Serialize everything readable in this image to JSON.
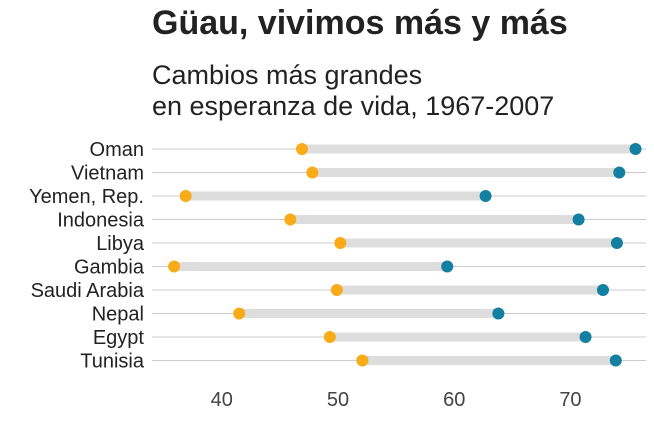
{
  "chart_data": {
    "type": "dumbbell",
    "title": "Güau, vivimos más y más",
    "subtitle": [
      "Cambios más grandes",
      "en esperanza de vida, 1967-2007"
    ],
    "xlabel": "",
    "ylabel": "",
    "xlim": [
      34,
      76.5
    ],
    "x_ticks": [
      40,
      50,
      60,
      70
    ],
    "grid": "horizontal",
    "colors": {
      "start": "#FAAB18",
      "end": "#1380A1",
      "bar": "#dddddd",
      "grid": "#cbcbcb"
    },
    "series": [
      {
        "year": 1967,
        "color": "#FAAB18"
      },
      {
        "year": 2007,
        "color": "#1380A1"
      }
    ],
    "categories": [
      "Oman",
      "Vietnam",
      "Yemen, Rep.",
      "Indonesia",
      "Libya",
      "Gambia",
      "Saudi Arabia",
      "Nepal",
      "Egypt",
      "Tunisia"
    ],
    "start": [
      46.9,
      47.8,
      36.9,
      45.9,
      50.2,
      35.9,
      49.9,
      41.5,
      49.3,
      52.1
    ],
    "end": [
      75.6,
      74.2,
      62.7,
      70.7,
      74.0,
      59.4,
      72.8,
      63.8,
      71.3,
      73.9
    ]
  }
}
